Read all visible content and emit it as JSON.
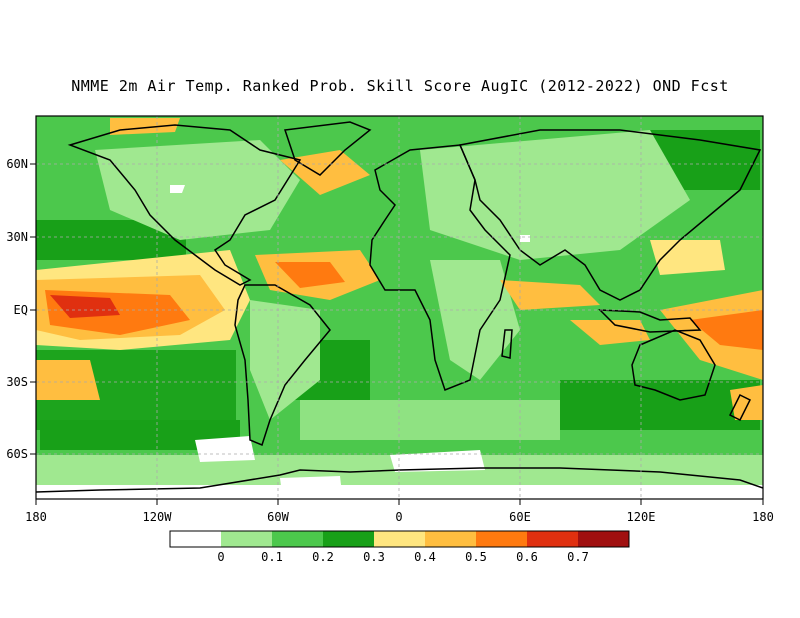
{
  "title": "NMME 2m Air Temp. Ranked Prob. Skill Score AugIC (2012-2022) OND Fcst",
  "lat_ticks": [
    "60N",
    "30N",
    "EQ",
    "30S",
    "60S"
  ],
  "lon_ticks": [
    "180",
    "120W",
    "60W",
    "0",
    "60E",
    "120E",
    "180"
  ],
  "legend": {
    "colors": [
      "#ffffff",
      "#a0e890",
      "#4cc84c",
      "#18a018",
      "#ffe680",
      "#ffbe40",
      "#ff7a10",
      "#e03010",
      "#a01010"
    ],
    "labels": [
      "0",
      "0.1",
      "0.2",
      "0.3",
      "0.4",
      "0.5",
      "0.6",
      "0.7"
    ]
  },
  "colors": {
    "land_line": "#000000",
    "grid": "#aaaaaa"
  }
}
